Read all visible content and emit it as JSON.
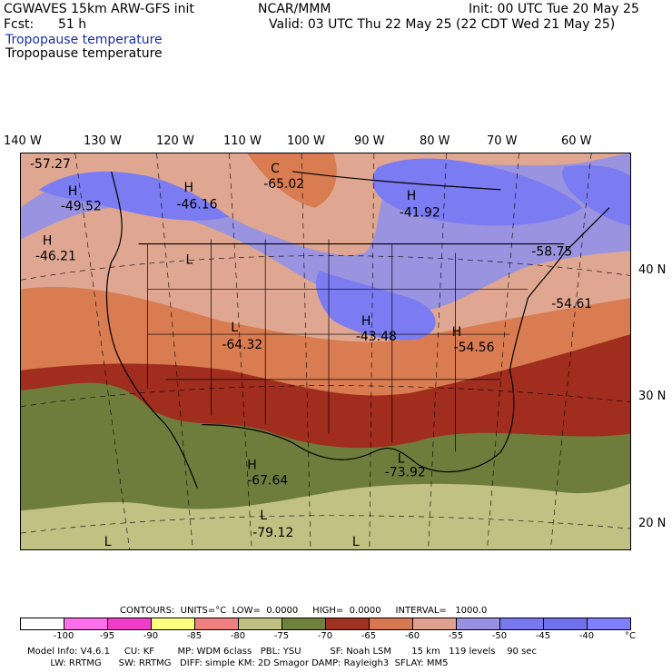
{
  "header": {
    "line1_left": "CGWAVES 15km ARW-GFS init",
    "line1_center": "NCAR/MMM",
    "line1_right": "Init: 00 UTC Tue 20 May 25",
    "forecast_label": "Fcst:",
    "forecast_value": "51 h",
    "valid": "Valid: 03 UTC Thu 22 May 25 (22 CDT Wed 21 May 25)",
    "field_title_blue": "Tropopause temperature",
    "field_title_black": "Tropopause temperature"
  },
  "longitude_labels": [
    "140 W",
    "130 W",
    "120 W",
    "110 W",
    "100 W",
    "90 W",
    "80 W",
    "70 W",
    "60 W"
  ],
  "latitude_labels": [
    "40 N",
    "30 N",
    "20 N"
  ],
  "map_labels": [
    {
      "text": "-57.27"
    },
    {
      "text": "H"
    },
    {
      "text": "-49.52"
    },
    {
      "text": "H"
    },
    {
      "text": "-46.16"
    },
    {
      "text": "C"
    },
    {
      "text": "-65.02"
    },
    {
      "text": "H"
    },
    {
      "text": "-41.92"
    },
    {
      "text": "H"
    },
    {
      "text": "-46.21"
    },
    {
      "text": "L"
    },
    {
      "text": "-58.75"
    },
    {
      "text": "-54.61"
    },
    {
      "text": "L"
    },
    {
      "text": "-64.32"
    },
    {
      "text": "H"
    },
    {
      "text": "-43.48"
    },
    {
      "text": "H"
    },
    {
      "text": "-54.56"
    },
    {
      "text": "H"
    },
    {
      "text": "-67.64"
    },
    {
      "text": "L"
    },
    {
      "text": "-73.92"
    },
    {
      "text": "L"
    },
    {
      "text": "-79.12"
    },
    {
      "text": "L"
    },
    {
      "text": "L"
    }
  ],
  "contour_info": {
    "text": "CONTOURS:  UNITS=°C  LOW=  0.0000     HIGH=  0.0000     INTERVAL=   1000.0"
  },
  "colorbar": {
    "colors": [
      "#ffffff",
      "#ff6eea",
      "#f03cc8",
      "#ffff80",
      "#f08080",
      "#c0c080",
      "#70803e",
      "#a03020",
      "#d87850",
      "#e0a090",
      "#9890e0",
      "#7878f0",
      "#7070ee",
      "#8080ff"
    ],
    "ticks": [
      "-100",
      "-95",
      "-90",
      "-85",
      "-80",
      "-75",
      "-70",
      "-65",
      "-60",
      "-55",
      "-50",
      "-45",
      "-40",
      "°C"
    ]
  },
  "model_info": {
    "line1": "Model Info: V4.6.1     CU: KF        MP: WDM 6class   PBL: YSU          SF: Noah LSM       15 km   119 levels    90 sec",
    "line2": "        LW: RRTMG      SW: RRTMG   DIFF: simple KM: 2D Smagor DAMP: Rayleigh3  SFLAY: MM5"
  },
  "field_colors": {
    "cold_olive": "#6f7d3c",
    "tan": "#c2c184",
    "dark_red": "#a02d1d",
    "orange": "#d97c51",
    "pink_tan": "#dfa791",
    "lavender": "#9a93df",
    "blue": "#7b7bf2"
  }
}
